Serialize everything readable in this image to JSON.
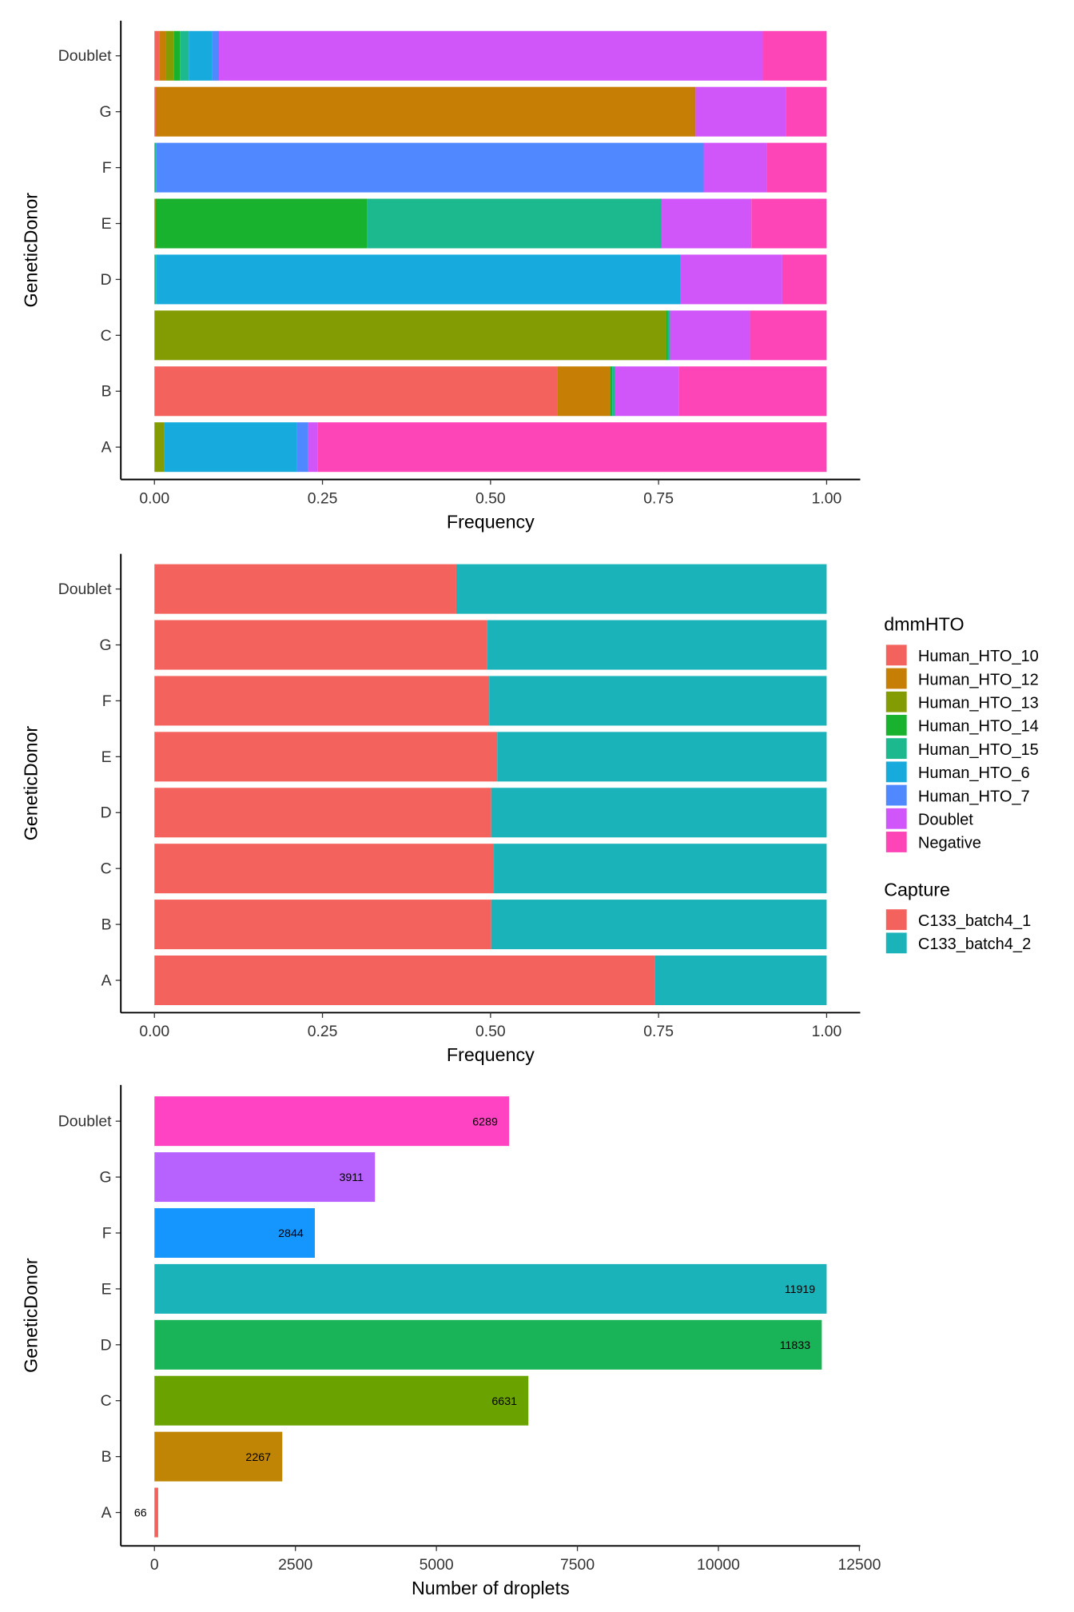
{
  "chart_data": [
    {
      "type": "bar",
      "orientation": "horizontal",
      "stacked": "fill",
      "categories": [
        "A",
        "B",
        "C",
        "D",
        "E",
        "F",
        "G",
        "Doublet"
      ],
      "xlabel": "Frequency",
      "ylabel": "GeneticDonor",
      "xlim": [
        -0.05,
        1.05
      ],
      "xticks": [
        "0.00",
        "0.25",
        "0.50",
        "0.75",
        "1.00"
      ],
      "xtick_values": [
        0,
        0.25,
        0.5,
        0.75,
        1
      ],
      "legend_title": "dmmHTO",
      "series": [
        {
          "name": "Human_HTO_10",
          "color": "#F3625D",
          "values": [
            0,
            0.6,
            0,
            0,
            0,
            0,
            0.002,
            0.007
          ]
        },
        {
          "name": "Human_HTO_12",
          "color": "#C77E04",
          "values": [
            0,
            0.078,
            0,
            0,
            0,
            0,
            0.803,
            0.01
          ]
        },
        {
          "name": "Human_HTO_13",
          "color": "#849C04",
          "values": [
            0.015,
            0,
            0.761,
            0,
            0.002,
            0,
            0,
            0.012
          ]
        },
        {
          "name": "Human_HTO_14",
          "color": "#19B22F",
          "values": [
            0,
            0.003,
            0.003,
            0,
            0.314,
            0,
            0,
            0.009
          ]
        },
        {
          "name": "Human_HTO_15",
          "color": "#1CB98F",
          "values": [
            0,
            0.004,
            0.003,
            0.003,
            0.438,
            0.003,
            0,
            0.013
          ]
        },
        {
          "name": "Human_HTO_6",
          "color": "#16ABDC",
          "values": [
            0.197,
            0,
            0,
            0.78,
            0,
            0,
            0,
            0.035
          ]
        },
        {
          "name": "Human_HTO_7",
          "color": "#5089FF",
          "values": [
            0.016,
            0,
            0,
            0,
            0,
            0.814,
            0,
            0.01
          ]
        },
        {
          "name": "Doublet",
          "color": "#D056FA",
          "values": [
            0.015,
            0.095,
            0.119,
            0.151,
            0.134,
            0.094,
            0.134,
            0.809
          ]
        },
        {
          "name": "Negative",
          "color": "#FE45B8",
          "values": [
            0.757,
            0.22,
            0.114,
            0.066,
            0.112,
            0.089,
            0.061,
            0.095
          ]
        }
      ]
    },
    {
      "type": "bar",
      "orientation": "horizontal",
      "stacked": "fill",
      "categories": [
        "A",
        "B",
        "C",
        "D",
        "E",
        "F",
        "G",
        "Doublet"
      ],
      "xlabel": "Frequency",
      "ylabel": "GeneticDonor",
      "xlim": [
        -0.05,
        1.05
      ],
      "xticks": [
        "0.00",
        "0.25",
        "0.50",
        "0.75",
        "1.00"
      ],
      "xtick_values": [
        0,
        0.25,
        0.5,
        0.75,
        1
      ],
      "legend_title": "Capture",
      "series": [
        {
          "name": "C133_batch4_1",
          "color": "#F3625D",
          "values": [
            0.745,
            0.501,
            0.505,
            0.501,
            0.51,
            0.498,
            0.495,
            0.449
          ]
        },
        {
          "name": "C133_batch4_2",
          "color": "#19B3B9",
          "values": [
            0.255,
            0.499,
            0.495,
            0.499,
            0.49,
            0.502,
            0.505,
            0.551
          ]
        }
      ]
    },
    {
      "type": "bar",
      "orientation": "horizontal",
      "categories": [
        "A",
        "B",
        "C",
        "D",
        "E",
        "F",
        "G",
        "Doublet"
      ],
      "values": [
        66,
        2267,
        6631,
        11833,
        11919,
        2844,
        3911,
        6289
      ],
      "labels": [
        "66",
        "2267",
        "6631",
        "11833",
        "11919",
        "2844",
        "3911",
        "6289"
      ],
      "colors": [
        "#F3625D",
        "#C08504",
        "#6AA300",
        "#1AB458",
        "#1AB3B9",
        "#1596FF",
        "#B762FF",
        "#FF43C3"
      ],
      "xlabel": "Number of droplets",
      "ylabel": "GeneticDonor",
      "xlim": [
        -596,
        12515
      ],
      "xticks": [
        "0",
        "2500",
        "5000",
        "7500",
        "10000",
        "12500"
      ],
      "xtick_values": [
        0,
        2500,
        5000,
        7500,
        10000,
        12500
      ]
    }
  ]
}
